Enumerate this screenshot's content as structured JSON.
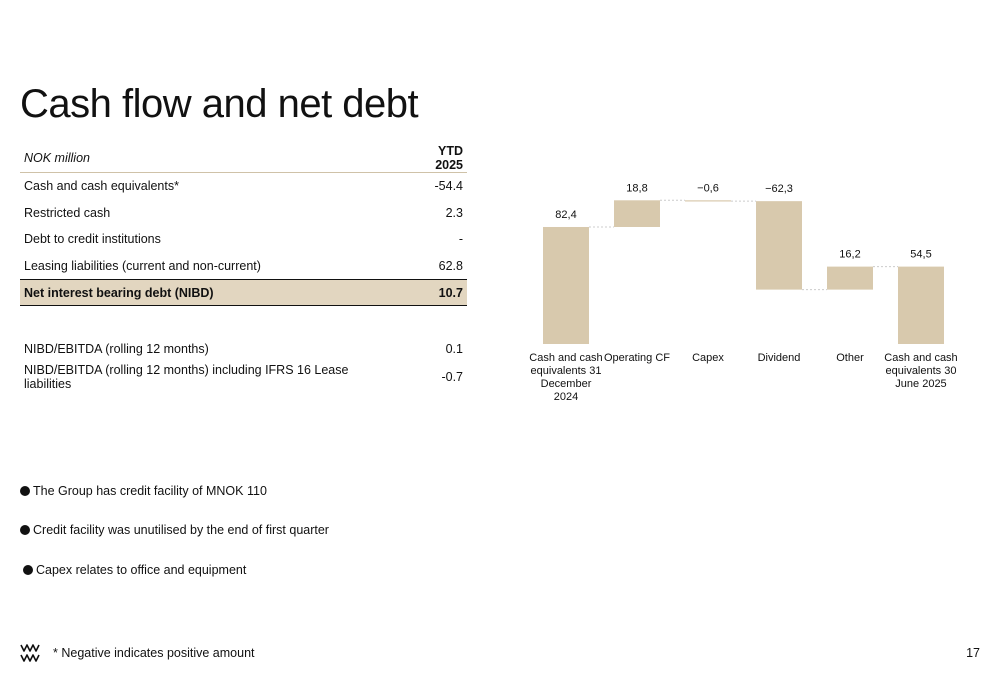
{
  "title": "Cash flow and net debt",
  "table": {
    "header": {
      "label": "NOK million",
      "value": "YTD 2025"
    },
    "rows": [
      {
        "label": "Cash and cash equivalents*",
        "value": "-54.4"
      },
      {
        "label": "Restricted cash",
        "value": "2.3"
      },
      {
        "label": "Debt to credit institutions",
        "value": "-"
      },
      {
        "label": "Leasing liabilities (current and non-current)",
        "value": "62.8"
      }
    ],
    "highlight": {
      "label": "Net interest bearing debt (NIBD)",
      "value": "10.7"
    },
    "ratios": [
      {
        "label": "NIBD/EBITDA (rolling 12 months)",
        "value": "0.1"
      },
      {
        "label": "NIBD/EBITDA (rolling 12 months) including IFRS 16 Lease liabilities",
        "value": "-0.7"
      }
    ]
  },
  "chart_data": {
    "type": "bar",
    "subtype": "waterfall",
    "categories": [
      [
        "Cash and cash",
        "equivalents 31",
        "December",
        "2024"
      ],
      [
        "Operating CF"
      ],
      [
        "Capex"
      ],
      [
        "Dividend"
      ],
      [
        "Other"
      ],
      [
        "Cash and cash",
        "equivalents 30",
        "June 2025"
      ]
    ],
    "values": [
      82.4,
      18.8,
      -0.6,
      -62.3,
      16.2,
      54.5
    ],
    "labels": [
      "82,4",
      "18,8",
      "−0,6",
      "−62,3",
      "16,2",
      "54,5"
    ],
    "totals": [
      true,
      false,
      false,
      false,
      false,
      true
    ],
    "color": "#d8c9ad",
    "connector_color": "#cccccc",
    "grid": false
  },
  "bullets": [
    "The Group has credit facility of MNOK 110",
    "Credit facility was unutilised by the end of first quarter",
    "Capex relates to office and equipment"
  ],
  "footnote": "* Negative indicates positive amount",
  "page_number": "17"
}
